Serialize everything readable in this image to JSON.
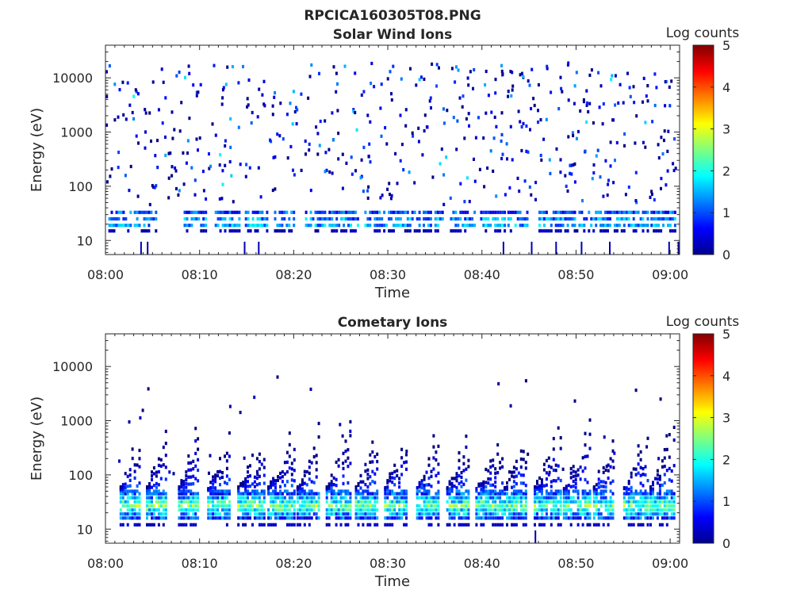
{
  "figure": {
    "title": "RPCICA160305T08.PNG"
  },
  "chart_data": [
    {
      "type": "heatmap",
      "title": "Solar Wind Ions",
      "xlabel": "Time",
      "ylabel": "Energy (eV)",
      "x_ticks": [
        "08:00",
        "08:10",
        "08:20",
        "08:30",
        "08:40",
        "08:50",
        "09:00"
      ],
      "x_range_minutes": [
        0,
        61
      ],
      "y_scale": "log",
      "y_ticks": [
        "10",
        "100",
        "1000",
        "10000"
      ],
      "y_range": [
        5.5,
        40000
      ],
      "colorbar": {
        "label": "Log counts",
        "ticks": [
          "0",
          "1",
          "2",
          "3",
          "4",
          "5"
        ],
        "range": [
          0,
          5
        ],
        "colormap": "jet"
      },
      "bursts_start_minutes": [
        0.3,
        3.0,
        8.3,
        11.6,
        14.8,
        17.9,
        21.2,
        24.2,
        27.5,
        30.5,
        33.7,
        36.6,
        39.8,
        42.7,
        46.0,
        49.0,
        52.0,
        55.0,
        57.9
      ],
      "bands": [
        {
          "energy_ev": 19,
          "log_counts": 1.4
        },
        {
          "energy_ev": 25,
          "log_counts": 1.3
        },
        {
          "energy_ev": 33,
          "log_counts": 1.0
        }
      ],
      "scatter_energy_range_ev": [
        45,
        20000
      ],
      "scatter_log_counts_range": [
        0,
        1.9
      ]
    },
    {
      "type": "heatmap",
      "title": "Cometary Ions",
      "xlabel": "Time",
      "ylabel": "Energy (eV)",
      "x_ticks": [
        "08:00",
        "08:10",
        "08:20",
        "08:30",
        "08:40",
        "08:50",
        "09:00"
      ],
      "x_range_minutes": [
        0,
        61
      ],
      "y_scale": "log",
      "y_ticks": [
        "10",
        "100",
        "1000",
        "10000"
      ],
      "y_range": [
        5.5,
        40000
      ],
      "colorbar": {
        "label": "Log counts",
        "ticks": [
          "0",
          "1",
          "2",
          "3",
          "4",
          "5"
        ],
        "range": [
          0,
          5
        ],
        "colormap": "jet"
      },
      "bursts_start_minutes": [
        1.5,
        4.3,
        7.7,
        10.8,
        14.0,
        17.2,
        20.3,
        23.4,
        26.5,
        29.6,
        33.0,
        36.2,
        39.3,
        42.3,
        45.5,
        48.6,
        51.8,
        55.0,
        57.8
      ],
      "core_band": {
        "energy_ev": [
          16,
          45
        ],
        "log_counts_peak": 3.0
      },
      "scatter_energy_range_ev": [
        100,
        7000
      ],
      "scatter_log_counts_range": [
        0,
        0.6
      ]
    }
  ]
}
